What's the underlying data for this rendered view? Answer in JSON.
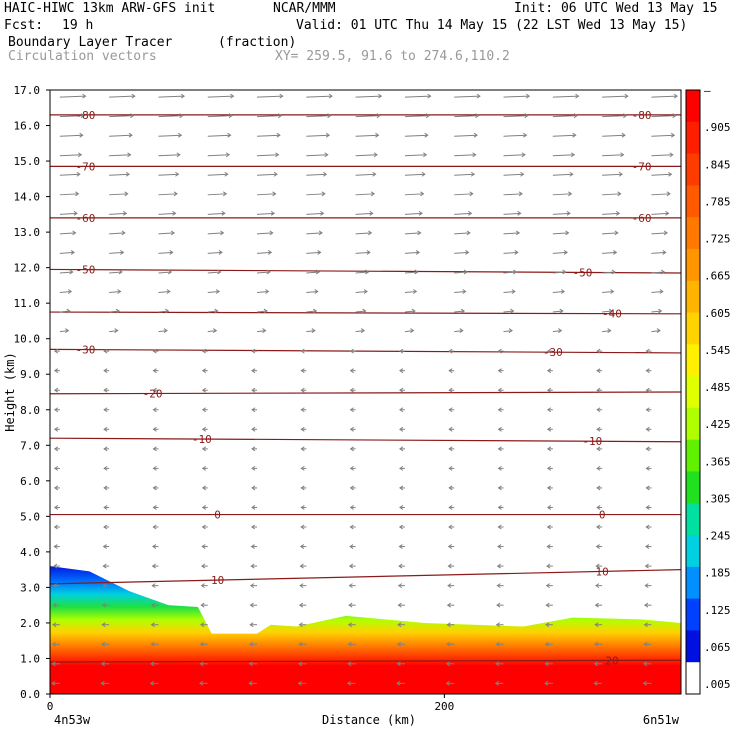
{
  "header": {
    "model": "HAIC-HIWC 13km ARW-GFS init",
    "org": "NCAR/MMM",
    "init": "Init: 06 UTC Wed 13 May 15",
    "fcst_label": "Fcst:",
    "fcst_value": "19 h",
    "valid": "Valid: 01 UTC Thu 14 May 15 (22 LST Wed 13 May 15)",
    "field": "Boundary Layer Tracer",
    "units": "(fraction)",
    "vectors": "Circulation vectors",
    "xy": "XY= 259.5, 91.6 to 274.6,110.2"
  },
  "chart_data": {
    "type": "heatmap",
    "title": "Boundary Layer Tracer",
    "xlabel": "Distance (km)",
    "ylabel": "Height (km)",
    "xlim": [
      0,
      320
    ],
    "ylim": [
      0,
      17
    ],
    "x_ticks": [
      {
        "v": 0,
        "label": "0"
      },
      {
        "v": 200,
        "label": "200"
      }
    ],
    "x_end_labels": {
      "left": "4n53w",
      "right": "6n51w"
    },
    "y_ticks": [
      "0.0",
      "1.0",
      "2.0",
      "3.0",
      "4.0",
      "5.0",
      "6.0",
      "7.0",
      "8.0",
      "9.0",
      "10.0",
      "11.0",
      "12.0",
      "13.0",
      "14.0",
      "15.0",
      "16.0",
      "17.0"
    ],
    "colorbar": {
      "labels": [
        "–",
        ".905",
        ".845",
        ".785",
        ".725",
        ".665",
        ".605",
        ".545",
        ".485",
        ".425",
        ".365",
        ".305",
        ".245",
        ".185",
        ".125",
        ".065",
        ".005"
      ],
      "colors": [
        "#ff0000",
        "#ff1e00",
        "#ff3c00",
        "#ff5a00",
        "#ff7800",
        "#ff9600",
        "#ffb400",
        "#ffd200",
        "#fff000",
        "#e0ff00",
        "#b0ff00",
        "#60f000",
        "#20e020",
        "#00e0a0",
        "#00d0e0",
        "#0090ff",
        "#0040ff",
        "#0010e0",
        "#ffffff"
      ]
    },
    "tracer_top_km": [
      {
        "x": 0,
        "top": 3.6
      },
      {
        "x": 20,
        "top": 3.45
      },
      {
        "x": 40,
        "top": 2.9
      },
      {
        "x": 60,
        "top": 2.5
      },
      {
        "x": 75,
        "top": 2.45
      },
      {
        "x": 82,
        "top": 1.7
      },
      {
        "x": 105,
        "top": 1.7
      },
      {
        "x": 112,
        "top": 1.95
      },
      {
        "x": 125,
        "top": 1.9
      },
      {
        "x": 150,
        "top": 2.2
      },
      {
        "x": 190,
        "top": 2.0
      },
      {
        "x": 240,
        "top": 1.9
      },
      {
        "x": 265,
        "top": 2.15
      },
      {
        "x": 300,
        "top": 2.1
      },
      {
        "x": 320,
        "top": 2.0
      }
    ],
    "isotherms": [
      {
        "label": "-80",
        "y": [
          16.3,
          16.3
        ]
      },
      {
        "label": "-70",
        "y": [
          14.85,
          14.85
        ]
      },
      {
        "label": "-60",
        "y": [
          13.4,
          13.4
        ]
      },
      {
        "label": "-50",
        "y": [
          11.95,
          11.85
        ]
      },
      {
        "label": "-40",
        "y": [
          10.75,
          10.7
        ]
      },
      {
        "label": "-30",
        "y": [
          9.7,
          9.6
        ]
      },
      {
        "label": "-20",
        "y": [
          8.45,
          8.5
        ]
      },
      {
        "label": "-10",
        "y": [
          7.2,
          7.1
        ]
      },
      {
        "label": "0",
        "y": [
          5.05,
          5.05
        ]
      },
      {
        "label": "10",
        "y": [
          3.1,
          3.5
        ]
      },
      {
        "label": "20",
        "y": [
          0.9,
          0.95
        ]
      }
    ],
    "isotherm_label_positions": [
      {
        "label": "-80",
        "x": [
          18,
          300
        ]
      },
      {
        "label": "-70",
        "x": [
          18,
          300
        ]
      },
      {
        "label": "-60",
        "x": [
          18,
          300
        ]
      },
      {
        "label": "-50",
        "x": [
          18,
          270
        ]
      },
      {
        "label": "-40",
        "x": [
          285
        ]
      },
      {
        "label": "-30",
        "x": [
          18,
          255
        ]
      },
      {
        "label": "-20",
        "x": [
          52
        ]
      },
      {
        "label": "-10",
        "x": [
          77,
          275
        ]
      },
      {
        "label": "0",
        "x": [
          85,
          280
        ]
      },
      {
        "label": "10",
        "x": [
          85,
          280
        ]
      },
      {
        "label": "20",
        "x": [
          285
        ]
      }
    ],
    "grid": false,
    "legend": "right"
  },
  "colors": {
    "isotherm": "#8b1a1a",
    "vector": "#808080",
    "grey_text": "#999999"
  }
}
